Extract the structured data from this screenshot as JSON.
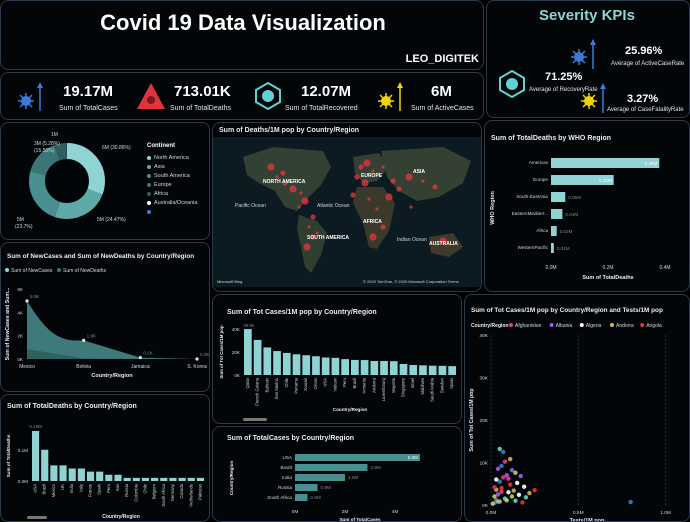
{
  "header": {
    "title": "Covid 19 Data Visualization",
    "author": "LEO_DIGITEK"
  },
  "severity": {
    "title": "Severity KPIs",
    "active_rate": {
      "value": "25.96%",
      "label": "Average of ActiveCaseRate"
    },
    "recovery_rate": {
      "value": "71.25%",
      "label": "Average of RecoveryRate"
    },
    "fatality_rate": {
      "value": "3.27%",
      "label": "Average of CaseFatalityRate"
    }
  },
  "kpis": {
    "total_cases": {
      "value": "19.17M",
      "label": "Sum of TotalCases"
    },
    "total_deaths": {
      "value": "713.01K",
      "label": "Sum of TotalDeaths"
    },
    "total_recovered": {
      "value": "12.07M",
      "label": "Sum of TotalRecovered"
    },
    "active_cases": {
      "value": "6M",
      "label": "Sum of ActiveCases"
    }
  },
  "donut": {
    "legend_title": "Continent",
    "legend": [
      "North America",
      "Asia",
      "South America",
      "Europe",
      "Africa",
      "Australia/Oceania",
      ""
    ],
    "labels": [
      "1M",
      "3M (5.28%)",
      "(15.56%)",
      "6M (30.86%)",
      "5M (24.47%)",
      "5M",
      "(23.7%)"
    ]
  },
  "map": {
    "title": "Sum of Deaths/1M pop by Country/Region",
    "labels": [
      "NORTH AMERICA",
      "EUROPE",
      "ASIA",
      "Pacific Ocean",
      "Atlantic Ocean",
      "AFRICA",
      "SOUTH AMERICA",
      "Indian Ocean",
      "AUSTRALIA"
    ],
    "footer_left": "Microsoft Bing",
    "footer_right": "© 2020 TomTom, © 2020 Microsoft Corporation  Terms"
  },
  "colors": {
    "accent": "#8fd3d3",
    "panel_border": "#2b3a4a",
    "map_dot": "#e0343c",
    "kpi_yellow": "#f2d20f"
  },
  "chart_data": [
    {
      "id": "who_deaths",
      "type": "bar",
      "orientation": "horizontal",
      "title": "Sum of TotalDeaths by WHO Region",
      "xlabel": "Sum of TotalDeaths",
      "ylabel": "WHO Region",
      "categories": [
        "Americas",
        "Europe",
        "South-EastAsia",
        "EasternMediterr...",
        "Africa",
        "WesternPacific"
      ],
      "values": [
        0.38,
        0.22,
        0.05,
        0.04,
        0.02,
        0.01
      ],
      "value_labels": [
        "0.38M",
        "0.22M",
        "0.05M",
        "0.04M",
        "0.02M",
        "0.01M"
      ],
      "ticks": [
        "0.0M",
        "0.2M",
        "0.4M"
      ],
      "xlim": [
        0,
        0.4
      ]
    },
    {
      "id": "newcases",
      "type": "area",
      "title": "Sum of NewCases and Sum of NewDeaths by Country/Region",
      "legend": [
        "Sum of NewCases",
        "Sum of NewDeaths"
      ],
      "xlabel": "Country/Region",
      "ylabel": "Sum of NewCases and Sum...",
      "categories": [
        "Mexico",
        "Bolivia",
        "Jamaica",
        "S. Korea"
      ],
      "series": [
        {
          "name": "Sum of NewCases",
          "values": [
            4973,
            1600,
            120,
            0
          ]
        },
        {
          "name": "Sum of NewDeaths",
          "values": [
            857,
            50,
            10,
            0
          ]
        }
      ],
      "data_labels": [
        "5.0K",
        "1.6K",
        "0.1K",
        "0.0K"
      ],
      "ticks": [
        "0K",
        "2K",
        "4K",
        "6K"
      ],
      "ylim": [
        0,
        6000
      ]
    },
    {
      "id": "deaths_country",
      "type": "bar",
      "title": "Sum of TotalDeaths by Country/Region",
      "ylabel": "Sum of TotalDeaths",
      "xlabel": "Country/Region",
      "categories": [
        "USA",
        "Brazil",
        "Mexico",
        "UK",
        "India",
        "Italy",
        "France",
        "Spain",
        "Peru",
        "Iran",
        "Russia",
        "Colombia",
        "Chile",
        "Belgium",
        "South Africa",
        "Germany",
        "Canada",
        "Netherlands",
        "Pakistan"
      ],
      "values": [
        0.16,
        0.1,
        0.05,
        0.05,
        0.04,
        0.04,
        0.03,
        0.03,
        0.02,
        0.02,
        0.01,
        0.01,
        0.01,
        0.01,
        0.01,
        0.01,
        0.01,
        0.01,
        0.01
      ],
      "top_label": "0.16M",
      "ticks": [
        "0.0M",
        "0.1M"
      ],
      "ylim": [
        0,
        0.16
      ]
    },
    {
      "id": "cases_per_pop",
      "type": "bar",
      "title": "Sum of Tot Cases/1M pop by Country/Region",
      "ylabel": "Sum of Tot Cases/1M pop",
      "xlabel": "Country/Region",
      "categories": [
        "Qatar",
        "French Guiana",
        "Bahrain",
        "San Marino",
        "Chile",
        "Panama",
        "Kuwait",
        "Oman",
        "USA",
        "Vatican",
        "Peru",
        "Brazil",
        "Armenia",
        "Andorra",
        "Luxembourg",
        "Mayotte",
        "Singapore",
        "Israel",
        "Maldives",
        "Saudi Arabia",
        "Sweden",
        "Spain"
      ],
      "values": [
        39922,
        30500,
        24000,
        20800,
        19200,
        18000,
        17200,
        16300,
        15200,
        14900,
        13800,
        13100,
        13000,
        12200,
        12200,
        12000,
        9600,
        8700,
        8400,
        8100,
        8000,
        7700
      ],
      "value_labels": [
        "39.9K",
        "",
        "",
        "",
        "",
        "",
        "",
        "",
        "",
        "",
        "",
        "",
        "",
        "",
        "",
        "",
        "",
        "",
        "",
        "",
        "",
        ""
      ],
      "ticks": [
        "0K",
        "20K",
        "40K"
      ],
      "ylim": [
        0,
        40000
      ]
    },
    {
      "id": "total_cases_country",
      "type": "bar",
      "orientation": "horizontal",
      "title": "Sum of TotalCases by Country/Region",
      "ylabel": "Country/Region",
      "xlabel": "Sum of TotalCases",
      "categories": [
        "USA",
        "Brazil",
        "India",
        "Russia",
        "South Africa"
      ],
      "values": [
        5.0,
        2.9,
        2.0,
        0.9,
        0.5
      ],
      "value_labels": [
        "5.0M",
        "2.9M",
        "2.0M",
        "0.9M",
        "0.5M"
      ],
      "ticks": [
        "0M",
        "2M",
        "4M"
      ],
      "xlim": [
        0,
        5.2
      ]
    },
    {
      "id": "tests_scatter",
      "type": "scatter",
      "title": "Sum of Tot Cases/1M pop by Country/Region and Tests/1M pop",
      "legend_title": "Country/Region",
      "legend": [
        "Afghanistan",
        "Albania",
        "Algeria",
        "Andorra",
        "Angola"
      ],
      "legend_colors": [
        "#e63c8c",
        "#9c5cf0",
        "#ffffff",
        "#d4b24c",
        "#e0343c"
      ],
      "xlabel": "Tests/1M pop",
      "ylabel": "Sum of Tot Cases/1M pop",
      "xticks": [
        "0.0M",
        "0.5M",
        "1.0M"
      ],
      "yticks": [
        "0K",
        "10K",
        "20K",
        "30K",
        "40K"
      ],
      "xlim": [
        0,
        1.1
      ],
      "ylim": [
        0,
        40000
      ],
      "points": [
        [
          0.02,
          500
        ],
        [
          0.03,
          1200
        ],
        [
          0.04,
          2500
        ],
        [
          0.05,
          800
        ],
        [
          0.06,
          4000
        ],
        [
          0.08,
          1500
        ],
        [
          0.1,
          3000
        ],
        [
          0.12,
          2000
        ],
        [
          0.05,
          5500
        ],
        [
          0.07,
          6500
        ],
        [
          0.09,
          7000
        ],
        [
          0.03,
          3600
        ],
        [
          0.11,
          4800
        ],
        [
          0.14,
          1000
        ],
        [
          0.16,
          2400
        ],
        [
          0.02,
          2000
        ],
        [
          0.06,
          9200
        ],
        [
          0.08,
          10200
        ],
        [
          0.04,
          8500
        ],
        [
          0.13,
          3400
        ],
        [
          0.18,
          600
        ],
        [
          0.2,
          1800
        ],
        [
          0.15,
          5200
        ],
        [
          0.01,
          300
        ],
        [
          0.07,
          12500
        ],
        [
          0.1,
          6200
        ],
        [
          0.12,
          8200
        ],
        [
          0.22,
          2800
        ],
        [
          0.25,
          3500
        ],
        [
          0.05,
          13200
        ],
        [
          0.03,
          6000
        ],
        [
          0.09,
          1100
        ],
        [
          0.8,
          700
        ],
        [
          0.06,
          3100
        ],
        [
          0.17,
          6800
        ],
        [
          0.11,
          10800
        ],
        [
          0.02,
          4200
        ],
        [
          0.04,
          800
        ],
        [
          0.19,
          4300
        ],
        [
          0.14,
          7600
        ]
      ],
      "point_colors": [
        "#3b7bd6",
        "#e63c8c",
        "#9c5cf0",
        "#d4b24c",
        "#e0343c",
        "#6dd3c0",
        "#ffffff",
        "#a8e05c"
      ]
    }
  ]
}
